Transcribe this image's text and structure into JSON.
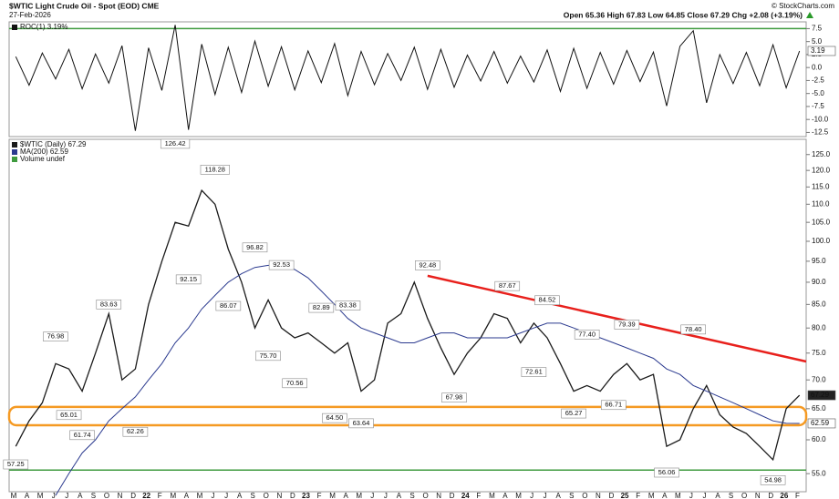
{
  "header": {
    "symbol_title": "$WTIC Light Crude Oil - Spot (EOD) CME",
    "date": "27-Feb-2026",
    "quote": "Open 65.36 High 67.83 Low 64.85 Close 67.29 Chg +2.08 (+3.19%)",
    "credit": "© StockCharts.com"
  },
  "chart_data": [
    {
      "type": "line",
      "series": [
        {
          "name": "ROC(1) 3.19%",
          "color": "#111111",
          "values": [
            2.1,
            -3.4,
            2.8,
            -2.2,
            3.5,
            -4.1,
            2.6,
            -3.0,
            4.2,
            -12.2,
            3.8,
            -4.4,
            8.2,
            -12.0,
            4.5,
            -5.2,
            3.9,
            -4.8,
            5.1,
            -3.6,
            4.0,
            -4.3,
            3.2,
            -2.9,
            4.6,
            -5.4,
            3.1,
            -3.3,
            2.7,
            -2.5,
            3.9,
            -4.2,
            3.5,
            -3.8,
            2.4,
            -2.6,
            3.1,
            -3.0,
            2.2,
            -2.8,
            3.4,
            -4.6,
            3.7,
            -4.0,
            2.9,
            -3.2,
            3.3,
            -2.7,
            3.0,
            -7.4,
            4.1,
            7.1,
            -6.8,
            2.5,
            -3.1,
            2.9,
            -3.5,
            4.4,
            -3.9,
            3.19
          ]
        }
      ],
      "ylim": [
        -13.3,
        8.8
      ],
      "yticks": [
        7.5,
        {
          "value": 5,
          "label": "5.0"
        },
        2.5,
        {
          "value": 0,
          "label": "0.0"
        },
        -2.5,
        {
          "value": -5,
          "label": "-5.0"
        },
        -7.5,
        {
          "value": -10,
          "label": "-10.0"
        },
        -12.5
      ],
      "reference_line": {
        "value": 7.5,
        "color": "#3f9b3f"
      },
      "legend": "top-left"
    },
    {
      "type": "line",
      "log_scale": true,
      "categories": [
        "M",
        "A",
        "M",
        "J",
        "J",
        "A",
        "S",
        "O",
        "N",
        "D",
        "22",
        "F",
        "M",
        "A",
        "M",
        "J",
        "J",
        "A",
        "S",
        "O",
        "N",
        "D",
        "23",
        "F",
        "M",
        "A",
        "M",
        "J",
        "J",
        "A",
        "S",
        "O",
        "N",
        "D",
        "24",
        "F",
        "M",
        "A",
        "M",
        "J",
        "J",
        "A",
        "S",
        "O",
        "N",
        "D",
        "25",
        "F",
        "M",
        "A",
        "M",
        "J",
        "J",
        "A",
        "S",
        "O",
        "N",
        "D",
        "26",
        "F"
      ],
      "series": [
        {
          "name": "$WTIC (Daily) 67.29",
          "color": "#1a1a1a",
          "values": [
            59,
            63,
            66,
            73,
            72,
            68,
            75,
            83,
            70,
            72,
            85,
            95,
            105,
            104,
            114,
            110,
            98,
            90,
            80,
            86,
            80,
            78,
            79,
            77,
            75,
            77,
            68,
            70,
            81,
            83,
            90,
            82,
            76,
            71,
            75,
            78,
            83,
            82,
            77,
            81,
            78,
            73,
            68,
            69,
            68,
            71,
            73,
            70,
            71,
            59,
            60,
            65,
            69,
            64,
            62,
            61,
            59,
            57,
            65,
            67.29
          ]
        },
        {
          "name": "MA(200) 62.59",
          "color": "#2b3a8f",
          "values": [
            null,
            null,
            null,
            52,
            55,
            58,
            60,
            63,
            65,
            67,
            70,
            73,
            77,
            80,
            84,
            87,
            90,
            92,
            93.5,
            94,
            94,
            93,
            91,
            88,
            85,
            82,
            80,
            79,
            78,
            77,
            77,
            78,
            79,
            79,
            78,
            78,
            78,
            78,
            79,
            80,
            81,
            81,
            80,
            79,
            78,
            77,
            76,
            75,
            74,
            72,
            71,
            69,
            68,
            67,
            66,
            65,
            64,
            63,
            62.6,
            62.59
          ]
        }
      ],
      "volume_legend": "Volume undef",
      "point_labels": {
        "values": [
          57.25,
          null,
          null,
          76.98,
          65.01,
          61.74,
          null,
          83.63,
          null,
          62.26,
          null,
          null,
          126.42,
          92.15,
          null,
          118.28,
          86.07,
          null,
          96.82,
          75.7,
          92.53,
          70.56,
          null,
          82.89,
          64.5,
          83.38,
          63.64,
          null,
          null,
          null,
          null,
          92.48,
          null,
          67.98,
          null,
          null,
          null,
          87.67,
          null,
          72.61,
          84.52,
          null,
          65.27,
          77.4,
          null,
          66.71,
          79.39,
          null,
          null,
          56.06,
          null,
          78.4,
          null,
          null,
          null,
          null,
          null,
          54.98,
          null,
          null
        ],
        "value_labels": [
          "57.25",
          null,
          null,
          "76.98",
          "65.01",
          "61.74",
          null,
          "83.63",
          null,
          "62.26",
          null,
          null,
          "126.42",
          "92.15",
          null,
          "118.28",
          "86.07",
          null,
          "96.82",
          "75.70",
          "92.53",
          "70.56",
          null,
          "82.89",
          "64.50",
          "83.38",
          "63.64",
          null,
          null,
          null,
          null,
          "92.48",
          null,
          "67.98",
          null,
          null,
          null,
          "87.67",
          null,
          "72.61",
          "84.52",
          null,
          "65.27",
          "77.40",
          null,
          "66.71",
          "79.39",
          null,
          null,
          "56.06",
          null,
          "78.40",
          null,
          null,
          null,
          null,
          null,
          "54.98",
          null,
          null
        ]
      },
      "ylim": [
        52.5,
        130
      ],
      "yticks": [
        {
          "value": 55,
          "label": "55.0"
        },
        {
          "value": 60,
          "label": "60.0"
        },
        {
          "value": 65,
          "label": "65.0"
        },
        {
          "value": 70,
          "label": "70.0"
        },
        {
          "value": 75,
          "label": "75.0"
        },
        {
          "value": 80,
          "label": "80.0"
        },
        {
          "value": 85,
          "label": "85.0"
        },
        {
          "value": 90,
          "label": "90.0"
        },
        {
          "value": 95,
          "label": "95.0"
        },
        {
          "value": 100,
          "label": "100.0"
        },
        {
          "value": 105,
          "label": "105.0"
        },
        {
          "value": 110,
          "label": "110.0"
        },
        {
          "value": 115,
          "label": "115.0"
        },
        {
          "value": 120,
          "label": "120.0"
        },
        {
          "value": 125,
          "label": "125.0"
        }
      ],
      "reference_line": {
        "value": 55.5,
        "color": "#3f9b3f"
      },
      "support_band": {
        "range": [
          62.3,
          65.3
        ],
        "color": "#f59a23"
      },
      "trend_line": {
        "start": [
          31,
          91.5
        ],
        "end": [
          60,
          73.4
        ],
        "color": "#e8201c"
      },
      "legend": "top-left"
    }
  ]
}
